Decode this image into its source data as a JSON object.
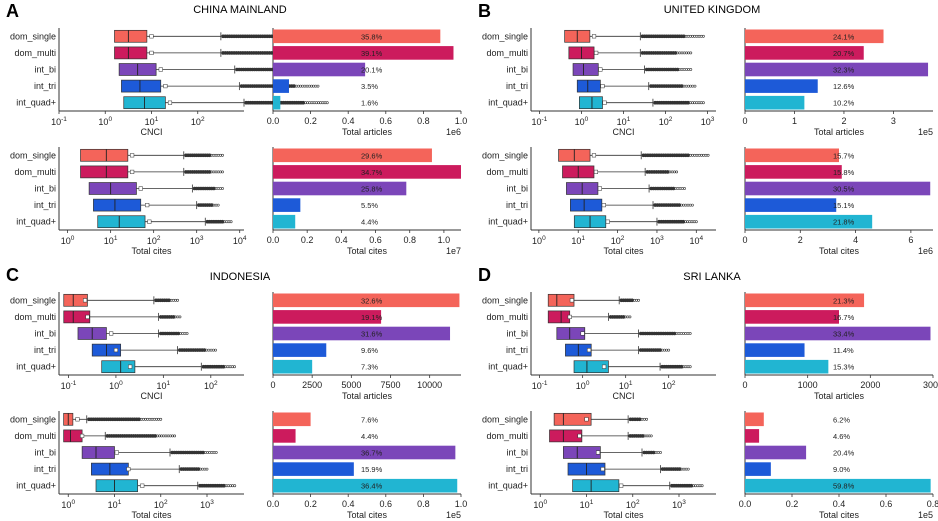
{
  "figure": {
    "panels": [
      {
        "letter": "A",
        "title": "CHINA MAINLAND"
      },
      {
        "letter": "B",
        "title": "UNITED KINGDOM"
      },
      {
        "letter": "C",
        "title": "INDONESIA"
      },
      {
        "letter": "D",
        "title": "SRI LANKA"
      }
    ]
  },
  "chart_data": {
    "categories": [
      "dom_single",
      "dom_multi",
      "int_bi",
      "int_tri",
      "int_quad+"
    ],
    "colors": [
      "#f4645a",
      "#cc1b5d",
      "#7b46b9",
      "#1d5ad8",
      "#21b5d2"
    ],
    "panels": [
      {
        "letter": "A",
        "title": "CHINA MAINLAND",
        "charts": [
          {
            "type": "boxplot",
            "scale": "log",
            "xlabel": "CNCI",
            "xlim_exp": [
              -1,
              3
            ],
            "ticks": [
              "10^-1",
              "10^0",
              "10^1",
              "10^2"
            ],
            "tick_exps": [
              -1,
              0,
              1,
              2
            ],
            "boxes": [
              {
                "q1": 0.2,
                "med": 0.5,
                "q3": 0.9,
                "mean": 1.0,
                "wmax": 2.5,
                "fmax": 4.5
              },
              {
                "q1": 0.2,
                "med": 0.5,
                "q3": 0.9,
                "mean": 1.0,
                "wmax": 2.5,
                "fmax": 4.5
              },
              {
                "q1": 0.3,
                "med": 0.7,
                "q3": 1.1,
                "mean": 1.2,
                "wmax": 2.8,
                "fmax": 4.8
              },
              {
                "q1": 0.35,
                "med": 0.75,
                "q3": 1.2,
                "mean": 1.3,
                "wmax": 2.9,
                "fmax": 4.6
              },
              {
                "q1": 0.4,
                "med": 0.85,
                "q3": 1.3,
                "mean": 1.4,
                "wmax": 3.0,
                "fmax": 4.8
              }
            ]
          },
          {
            "type": "bar",
            "xlabel": "Total articles",
            "xmax": 1.0,
            "ticks": [
              "0.0",
              "0.2",
              "0.4",
              "0.6",
              "0.8",
              "1.0"
            ],
            "tick_vals": [
              0,
              0.2,
              0.4,
              0.6,
              0.8,
              1.0
            ],
            "exponent": "1e6",
            "values": [
              0.89,
              0.96,
              0.49,
              0.085,
              0.039
            ],
            "labels": [
              "35.8%",
              "39.1%",
              "20.1%",
              "3.5%",
              "1.6%"
            ]
          },
          {
            "type": "boxplot",
            "scale": "log",
            "xlabel": "Total cites",
            "xlim_exp": [
              -0.2,
              4.1
            ],
            "ticks": [
              "10^0",
              "10^1",
              "10^2",
              "10^3",
              "10^4"
            ],
            "tick_exps": [
              0,
              1,
              2,
              3,
              4
            ],
            "boxes": [
              {
                "q1": 0.3,
                "med": 0.9,
                "q3": 1.4,
                "mean": 1.5,
                "wmax": 2.7,
                "fmax": 3.6
              },
              {
                "q1": 0.3,
                "med": 0.9,
                "q3": 1.4,
                "mean": 1.5,
                "wmax": 2.7,
                "fmax": 3.6
              },
              {
                "q1": 0.5,
                "med": 1.0,
                "q3": 1.6,
                "mean": 1.7,
                "wmax": 2.9,
                "fmax": 3.6
              },
              {
                "q1": 0.6,
                "med": 1.1,
                "q3": 1.7,
                "mean": 1.85,
                "wmax": 3.0,
                "fmax": 3.5
              },
              {
                "q1": 0.7,
                "med": 1.2,
                "q3": 1.8,
                "mean": 1.9,
                "wmax": 3.2,
                "fmax": 3.8
              }
            ]
          },
          {
            "type": "bar",
            "xlabel": "Total cites",
            "xmax": 1.1,
            "ticks": [
              "0.0",
              "0.2",
              "0.4",
              "0.6",
              "0.8",
              "1.0"
            ],
            "tick_vals": [
              0,
              0.2,
              0.4,
              0.6,
              0.8,
              1.0
            ],
            "exponent": "1e7",
            "values": [
              0.93,
              1.1,
              0.78,
              0.16,
              0.13
            ],
            "labels": [
              "29.6%",
              "34.7%",
              "25.8%",
              "5.5%",
              "4.4%"
            ]
          }
        ]
      },
      {
        "letter": "B",
        "title": "UNITED KINGDOM",
        "charts": [
          {
            "type": "boxplot",
            "scale": "log",
            "xlabel": "CNCI",
            "xlim_exp": [
              -1.2,
              3.2
            ],
            "ticks": [
              "10^-1",
              "10^0",
              "10^1",
              "10^2",
              "10^3"
            ],
            "tick_exps": [
              -1,
              0,
              1,
              2,
              3
            ],
            "boxes": [
              {
                "q1": -0.4,
                "med": -0.1,
                "q3": 0.2,
                "mean": 0.3,
                "wmax": 1.4,
                "fmax": 2.9
              },
              {
                "q1": -0.3,
                "med": 0.0,
                "q3": 0.3,
                "mean": 0.35,
                "wmax": 1.4,
                "fmax": 2.6
              },
              {
                "q1": -0.2,
                "med": 0.05,
                "q3": 0.4,
                "mean": 0.45,
                "wmax": 1.5,
                "fmax": 2.6
              },
              {
                "q1": -0.1,
                "med": 0.15,
                "q3": 0.45,
                "mean": 0.5,
                "wmax": 1.6,
                "fmax": 2.7
              },
              {
                "q1": -0.05,
                "med": 0.25,
                "q3": 0.5,
                "mean": 0.55,
                "wmax": 1.7,
                "fmax": 2.9
              }
            ]
          },
          {
            "type": "bar",
            "xlabel": "Total articles",
            "xmax": 3.8,
            "ticks": [
              "0",
              "1",
              "2",
              "3"
            ],
            "tick_vals": [
              0,
              1,
              2,
              3
            ],
            "exponent": "1e5",
            "values": [
              2.8,
              2.4,
              3.7,
              1.47,
              1.2
            ],
            "labels": [
              "24.1%",
              "20.7%",
              "32.3%",
              "12.6%",
              "10.2%"
            ]
          },
          {
            "type": "boxplot",
            "scale": "log",
            "xlabel": "Total cites",
            "xlim_exp": [
              -0.2,
              4.5
            ],
            "ticks": [
              "10^0",
              "10^1",
              "10^2",
              "10^3",
              "10^4"
            ],
            "tick_exps": [
              0,
              1,
              2,
              3,
              4
            ],
            "boxes": [
              {
                "q1": 0.5,
                "med": 0.9,
                "q3": 1.3,
                "mean": 1.4,
                "wmax": 2.6,
                "fmax": 4.3
              },
              {
                "q1": 0.6,
                "med": 1.0,
                "q3": 1.4,
                "mean": 1.45,
                "wmax": 2.7,
                "fmax": 3.5
              },
              {
                "q1": 0.7,
                "med": 1.1,
                "q3": 1.5,
                "mean": 1.55,
                "wmax": 2.8,
                "fmax": 3.7
              },
              {
                "q1": 0.8,
                "med": 1.15,
                "q3": 1.6,
                "mean": 1.65,
                "wmax": 2.9,
                "fmax": 3.9
              },
              {
                "q1": 0.9,
                "med": 1.3,
                "q3": 1.7,
                "mean": 1.75,
                "wmax": 3.0,
                "fmax": 4.0
              }
            ]
          },
          {
            "type": "bar",
            "xlabel": "Total cites",
            "xmax": 6.8,
            "ticks": [
              "0",
              "2",
              "4",
              "6"
            ],
            "tick_vals": [
              0,
              2,
              4,
              6
            ],
            "exponent": "1e6",
            "values": [
              3.4,
              3.5,
              6.7,
              3.3,
              4.6
            ],
            "labels": [
              "15.7%",
              "15.8%",
              "30.5%",
              "15.1%",
              "21.8%"
            ]
          }
        ]
      },
      {
        "letter": "C",
        "title": "INDONESIA",
        "charts": [
          {
            "type": "boxplot",
            "scale": "log",
            "xlabel": "CNCI",
            "xlim_exp": [
              -1.2,
              2.7
            ],
            "ticks": [
              "10^-1",
              "10^0",
              "10^1",
              "10^2"
            ],
            "tick_exps": [
              -1,
              0,
              1,
              2
            ],
            "boxes": [
              {
                "q1": -1.1,
                "med": -0.9,
                "q3": -0.6,
                "mean": -0.65,
                "wmax": 0.8,
                "fmax": 1.3
              },
              {
                "q1": -1.1,
                "med": -0.9,
                "q3": -0.55,
                "mean": -0.6,
                "wmax": 0.9,
                "fmax": 1.35
              },
              {
                "q1": -0.8,
                "med": -0.5,
                "q3": -0.2,
                "mean": -0.1,
                "wmax": 0.9,
                "fmax": 1.5
              },
              {
                "q1": -0.5,
                "med": -0.2,
                "q3": 0.1,
                "mean": 0.0,
                "wmax": 1.3,
                "fmax": 2.1
              },
              {
                "q1": -0.3,
                "med": 0.1,
                "q3": 0.4,
                "mean": 0.3,
                "wmax": 1.8,
                "fmax": 2.5
              }
            ]
          },
          {
            "type": "bar",
            "xlabel": "Total articles",
            "xmax": 12000,
            "ticks": [
              "0",
              "2500",
              "5000",
              "7500",
              "10000"
            ],
            "tick_vals": [
              0,
              2500,
              5000,
              7500,
              10000
            ],
            "exponent": "",
            "values": [
              11900,
              6900,
              11300,
              3400,
              2500
            ],
            "labels": [
              "32.6%",
              "19.1%",
              "31.6%",
              "9.6%",
              "7.3%"
            ]
          },
          {
            "type": "boxplot",
            "scale": "log",
            "xlabel": "Total cites",
            "xlim_exp": [
              -0.2,
              3.8
            ],
            "ticks": [
              "10^0",
              "10^1",
              "10^2",
              "10^3"
            ],
            "tick_exps": [
              0,
              1,
              2,
              3
            ],
            "boxes": [
              {
                "q1": -0.1,
                "med": 0.0,
                "q3": 0.1,
                "mean": 0.2,
                "wmax": 0.4,
                "fmax": 2.0
              },
              {
                "q1": -0.1,
                "med": 0.05,
                "q3": 0.3,
                "mean": 0.3,
                "wmax": 0.8,
                "fmax": 2.3
              },
              {
                "q1": 0.3,
                "med": 0.6,
                "q3": 1.0,
                "mean": 1.05,
                "wmax": 2.2,
                "fmax": 3.2
              },
              {
                "q1": 0.5,
                "med": 0.9,
                "q3": 1.3,
                "mean": 1.3,
                "wmax": 2.4,
                "fmax": 3.0
              },
              {
                "q1": 0.6,
                "med": 1.0,
                "q3": 1.5,
                "mean": 1.6,
                "wmax": 2.8,
                "fmax": 3.6
              }
            ]
          },
          {
            "type": "bar",
            "xlabel": "Total cites",
            "xmax": 1.0,
            "ticks": [
              "0.0",
              "0.2",
              "0.4",
              "0.6",
              "0.8",
              "1.0"
            ],
            "tick_vals": [
              0,
              0.2,
              0.4,
              0.6,
              0.8,
              1.0
            ],
            "exponent": "1e5",
            "values": [
              0.2,
              0.12,
              0.97,
              0.43,
              0.98
            ],
            "labels": [
              "7.6%",
              "4.4%",
              "36.7%",
              "15.9%",
              "36.4%"
            ]
          }
        ]
      },
      {
        "letter": "D",
        "title": "SRI LANKA",
        "charts": [
          {
            "type": "boxplot",
            "scale": "log",
            "xlabel": "CNCI",
            "xlim_exp": [
              -1.2,
              3.1
            ],
            "ticks": [
              "10^-1",
              "10^0",
              "10^1",
              "10^2"
            ],
            "tick_exps": [
              -1,
              0,
              1,
              2
            ],
            "boxes": [
              {
                "q1": -0.8,
                "med": -0.6,
                "q3": -0.2,
                "mean": -0.25,
                "wmax": 0.85,
                "fmax": 1.3
              },
              {
                "q1": -0.8,
                "med": -0.5,
                "q3": -0.3,
                "mean": -0.3,
                "wmax": 0.6,
                "fmax": 1.1
              },
              {
                "q1": -0.6,
                "med": -0.3,
                "q3": 0.05,
                "mean": 0.0,
                "wmax": 1.3,
                "fmax": 2.5
              },
              {
                "q1": -0.4,
                "med": -0.1,
                "q3": 0.2,
                "mean": 0.15,
                "wmax": 1.3,
                "fmax": 2.0
              },
              {
                "q1": -0.2,
                "med": 0.1,
                "q3": 0.6,
                "mean": 0.5,
                "wmax": 1.8,
                "fmax": 2.5
              }
            ]
          },
          {
            "type": "bar",
            "xlabel": "Total articles",
            "xmax": 3000,
            "ticks": [
              "0",
              "1000",
              "2000",
              "3000"
            ],
            "tick_vals": [
              0,
              1000,
              2000,
              3000
            ],
            "exponent": "",
            "values": [
              1900,
              1500,
              2960,
              950,
              1330
            ],
            "labels": [
              "21.3%",
              "16.7%",
              "33.4%",
              "11.4%",
              "15.3%"
            ]
          },
          {
            "type": "boxplot",
            "scale": "log",
            "xlabel": "Total cites",
            "xlim_exp": [
              -0.2,
              3.8
            ],
            "ticks": [
              "10^0",
              "10^1",
              "10^2",
              "10^3"
            ],
            "tick_exps": [
              0,
              1,
              2,
              3
            ],
            "boxes": [
              {
                "q1": 0.3,
                "med": 0.5,
                "q3": 1.1,
                "mean": 1.0,
                "wmax": 1.9,
                "fmax": 2.3
              },
              {
                "q1": 0.2,
                "med": 0.5,
                "q3": 0.9,
                "mean": 0.85,
                "wmax": 1.9,
                "fmax": 2.4
              },
              {
                "q1": 0.5,
                "med": 0.8,
                "q3": 1.3,
                "mean": 1.25,
                "wmax": 2.2,
                "fmax": 2.6
              },
              {
                "q1": 0.6,
                "med": 1.0,
                "q3": 1.4,
                "mean": 1.35,
                "wmax": 2.6,
                "fmax": 3.2
              },
              {
                "q1": 0.7,
                "med": 1.1,
                "q3": 1.7,
                "mean": 1.75,
                "wmax": 2.8,
                "fmax": 3.5
              }
            ]
          },
          {
            "type": "bar",
            "xlabel": "Total cites",
            "xmax": 0.8,
            "ticks": [
              "0.0",
              "0.2",
              "0.4",
              "0.6",
              "0.8"
            ],
            "tick_vals": [
              0,
              0.2,
              0.4,
              0.6,
              0.8
            ],
            "exponent": "1e5",
            "values": [
              0.08,
              0.06,
              0.26,
              0.11,
              0.79
            ],
            "labels": [
              "6.2%",
              "4.6%",
              "20.4%",
              "9.0%",
              "59.8%"
            ]
          }
        ]
      }
    ]
  }
}
